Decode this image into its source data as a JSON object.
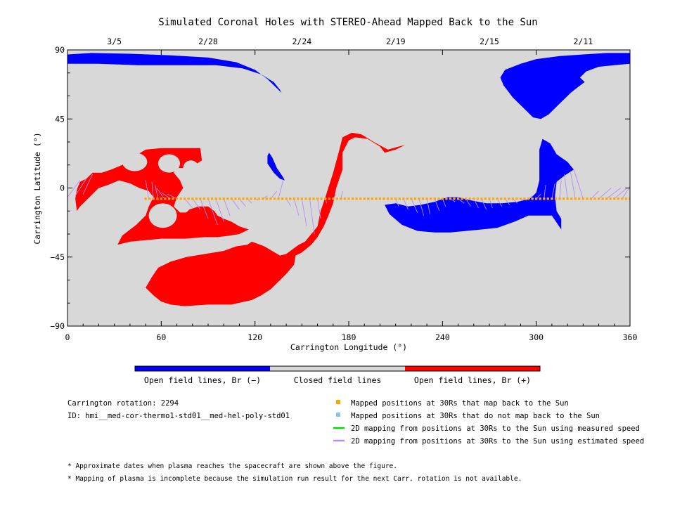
{
  "chart_data": {
    "type": "scatter",
    "title": "Simulated Coronal Holes with STEREO-Ahead Mapped Back to the Sun",
    "xlabel": "Carrington Longitude (°)",
    "ylabel": "Carrington Latitude (°)",
    "xlim": [
      0,
      360
    ],
    "ylim": [
      -90,
      90
    ],
    "x_ticks": [
      "0",
      "60",
      "120",
      "180",
      "240",
      "300",
      "360"
    ],
    "y_ticks": [
      "90",
      "45",
      "0",
      "−45",
      "−90"
    ],
    "x_tick_values": [
      0,
      60,
      120,
      180,
      240,
      300,
      360
    ],
    "y_tick_values": [
      90,
      45,
      0,
      -45,
      -90
    ],
    "top_axis": {
      "labels": [
        "3/5",
        "2/28",
        "2/24",
        "2/19",
        "2/15",
        "2/11"
      ],
      "longitudes": [
        30,
        90,
        150,
        210,
        270,
        330
      ]
    },
    "background_color": "#d8d8d8",
    "colors": {
      "negative": "#0000ff",
      "positive": "#ff0000",
      "mapped": "#ffa500",
      "estimated": "#b68cf5",
      "measured": "#00dd00",
      "unmapped": "#87c3f0"
    },
    "colorbar": {
      "segments": [
        {
          "label": "Open field lines, Br (−)",
          "color": "#0000ff"
        },
        {
          "label": "Closed field lines",
          "color": "#d8d8d8"
        },
        {
          "label": "Open field lines, Br (+)",
          "color": "#ff0000"
        }
      ]
    },
    "mapped_points": {
      "lon_start": 50,
      "lon_end": 360,
      "lon_step": 2.5,
      "lat": -7
    },
    "coronal_holes": [
      {
        "polarity": "negative",
        "outline": [
          [
            0,
            87
          ],
          [
            15,
            88
          ],
          [
            40,
            87.5
          ],
          [
            65,
            86.5
          ],
          [
            90,
            85
          ],
          [
            108,
            82
          ],
          [
            120,
            77
          ],
          [
            128,
            71
          ],
          [
            134,
            65
          ],
          [
            137,
            62
          ],
          [
            136,
            64
          ],
          [
            132,
            69
          ],
          [
            124,
            74
          ],
          [
            112,
            78
          ],
          [
            95,
            80
          ],
          [
            70,
            80
          ],
          [
            45,
            80
          ],
          [
            20,
            81
          ],
          [
            0,
            81
          ]
        ]
      },
      {
        "polarity": "negative",
        "outline": [
          [
            280,
            77
          ],
          [
            290,
            81
          ],
          [
            300,
            84
          ],
          [
            315,
            86
          ],
          [
            330,
            87
          ],
          [
            345,
            88
          ],
          [
            360,
            88
          ],
          [
            360,
            81
          ],
          [
            350,
            80
          ],
          [
            340,
            79
          ],
          [
            332,
            76
          ],
          [
            328,
            72
          ],
          [
            331,
            69
          ],
          [
            327,
            66
          ],
          [
            322,
            62
          ],
          [
            315,
            55
          ],
          [
            308,
            48
          ],
          [
            303,
            45
          ],
          [
            298,
            46
          ],
          [
            292,
            52
          ],
          [
            285,
            59
          ],
          [
            279,
            67
          ],
          [
            277,
            72
          ]
        ]
      },
      {
        "polarity": "negative",
        "outline": [
          [
            129,
            23
          ],
          [
            131,
            20
          ],
          [
            134,
            13
          ],
          [
            138,
            7
          ],
          [
            139,
            5
          ],
          [
            136,
            6
          ],
          [
            132,
            10
          ],
          [
            128,
            16
          ],
          [
            128,
            21
          ]
        ]
      },
      {
        "polarity": "negative",
        "outline": [
          [
            203,
            -11
          ],
          [
            210,
            -10
          ],
          [
            218,
            -12
          ],
          [
            226,
            -11
          ],
          [
            235,
            -9
          ],
          [
            243,
            -6
          ],
          [
            250,
            -6
          ],
          [
            258,
            -8
          ],
          [
            268,
            -10
          ],
          [
            278,
            -10
          ],
          [
            288,
            -9
          ],
          [
            296,
            -7
          ],
          [
            300,
            -3
          ],
          [
            302,
            5
          ],
          [
            302,
            15
          ],
          [
            302,
            25
          ],
          [
            304,
            32
          ],
          [
            309,
            29
          ],
          [
            313,
            22
          ],
          [
            320,
            17
          ],
          [
            324,
            12
          ],
          [
            318,
            8
          ],
          [
            313,
            4
          ],
          [
            312,
            -5
          ],
          [
            313,
            -15
          ],
          [
            316,
            -20
          ],
          [
            316,
            -27
          ],
          [
            310,
            -18
          ],
          [
            302,
            -18
          ],
          [
            295,
            -18
          ],
          [
            286,
            -22
          ],
          [
            275,
            -26
          ],
          [
            265,
            -27
          ],
          [
            255,
            -28
          ],
          [
            245,
            -29
          ],
          [
            235,
            -29
          ],
          [
            224,
            -28
          ],
          [
            214,
            -24
          ],
          [
            206,
            -17
          ]
        ]
      },
      {
        "polarity": "positive",
        "outline": [
          [
            8,
            4
          ],
          [
            12,
            6
          ],
          [
            16,
            10
          ],
          [
            22,
            10
          ],
          [
            28,
            12
          ],
          [
            35,
            15
          ],
          [
            42,
            20
          ],
          [
            50,
            25
          ],
          [
            60,
            26
          ],
          [
            72,
            26
          ],
          [
            85,
            26
          ],
          [
            86,
            18
          ],
          [
            80,
            14
          ],
          [
            75,
            13
          ],
          [
            70,
            13
          ],
          [
            68,
            10
          ],
          [
            72,
            5
          ],
          [
            74,
            0
          ],
          [
            70,
            -6
          ],
          [
            68,
            -12
          ],
          [
            72,
            -16
          ],
          [
            76,
            -16
          ],
          [
            78,
            -14
          ],
          [
            84,
            -12
          ],
          [
            90,
            -12
          ],
          [
            94,
            -15
          ],
          [
            96,
            -18
          ],
          [
            100,
            -20
          ],
          [
            105,
            -22
          ],
          [
            110,
            -25
          ],
          [
            116,
            -27
          ],
          [
            110,
            -30
          ],
          [
            104,
            -31
          ],
          [
            96,
            -32
          ],
          [
            88,
            -32
          ],
          [
            75,
            -33
          ],
          [
            60,
            -33
          ],
          [
            50,
            -34
          ],
          [
            40,
            -35
          ],
          [
            32,
            -37
          ],
          [
            35,
            -31
          ],
          [
            44,
            -24
          ],
          [
            50,
            -18
          ],
          [
            52,
            -12
          ],
          [
            55,
            -6
          ],
          [
            52,
            -2
          ],
          [
            46,
            0
          ],
          [
            40,
            3
          ],
          [
            33,
            5
          ],
          [
            26,
            2
          ],
          [
            20,
            0
          ],
          [
            16,
            -4
          ],
          [
            12,
            -8
          ],
          [
            8,
            -12
          ],
          [
            6,
            -15
          ],
          [
            5,
            -7
          ],
          [
            6,
            -1
          ]
        ]
      },
      {
        "polarity": "positive",
        "outline": [
          [
            54,
            -58
          ],
          [
            58,
            -52
          ],
          [
            66,
            -48
          ],
          [
            76,
            -45
          ],
          [
            88,
            -43
          ],
          [
            100,
            -41
          ],
          [
            108,
            -38
          ],
          [
            115,
            -37
          ],
          [
            118,
            -35
          ],
          [
            126,
            -38
          ],
          [
            136,
            -44
          ],
          [
            140,
            -43
          ],
          [
            144,
            -40
          ],
          [
            148,
            -37
          ],
          [
            152,
            -35
          ],
          [
            156,
            -30
          ],
          [
            160,
            -25
          ],
          [
            162,
            -15
          ],
          [
            165,
            -6
          ],
          [
            170,
            10
          ],
          [
            174,
            25
          ],
          [
            176,
            33
          ],
          [
            182,
            36
          ],
          [
            188,
            35
          ],
          [
            196,
            30
          ],
          [
            205,
            25
          ],
          [
            212,
            27
          ],
          [
            216,
            28
          ],
          [
            210,
            25
          ],
          [
            203,
            23
          ],
          [
            200,
            27
          ],
          [
            192,
            32
          ],
          [
            184,
            33
          ],
          [
            180,
            31
          ],
          [
            176,
            23
          ],
          [
            176,
            12
          ],
          [
            172,
            0
          ],
          [
            170,
            -10
          ],
          [
            167,
            -18
          ],
          [
            164,
            -25
          ],
          [
            160,
            -32
          ],
          [
            156,
            -37
          ],
          [
            150,
            -42
          ],
          [
            146,
            -44
          ],
          [
            145,
            -50
          ],
          [
            140,
            -56
          ],
          [
            135,
            -61
          ],
          [
            130,
            -66
          ],
          [
            124,
            -70
          ],
          [
            118,
            -73
          ],
          [
            105,
            -76
          ],
          [
            90,
            -76
          ],
          [
            75,
            -77
          ],
          [
            66,
            -76
          ],
          [
            60,
            -74
          ],
          [
            55,
            -70
          ],
          [
            50,
            -65
          ]
        ]
      }
    ],
    "positive_holes_cutouts": [
      {
        "cx": 43,
        "cy": 17,
        "rx": 8,
        "ry": 6
      },
      {
        "cx": 65,
        "cy": 16,
        "rx": 7,
        "ry": 6
      },
      {
        "cx": 79,
        "cy": 13,
        "rx": 5,
        "ry": 5
      },
      {
        "cx": 61,
        "cy": -18,
        "rx": 9,
        "ry": 8
      }
    ],
    "estimated_mapping_lines": [
      [
        0,
        -6,
        8,
        5
      ],
      [
        5,
        -5,
        12,
        6
      ],
      [
        10,
        -4,
        16,
        9
      ],
      [
        52,
        -7,
        50,
        5
      ],
      [
        55,
        -7,
        54,
        4
      ],
      [
        58,
        -7,
        56,
        2
      ],
      [
        62,
        -7,
        57,
        0
      ],
      [
        66,
        -7,
        60,
        -3
      ],
      [
        70,
        -7,
        64,
        -4
      ],
      [
        75,
        -7,
        80,
        -13
      ],
      [
        80,
        -7,
        85,
        -14
      ],
      [
        85,
        -7,
        90,
        -20
      ],
      [
        90,
        -7,
        96,
        -24
      ],
      [
        95,
        -7,
        100,
        -22
      ],
      [
        100,
        -7,
        104,
        -18
      ],
      [
        105,
        -7,
        110,
        -14
      ],
      [
        110,
        -7,
        114,
        -12
      ],
      [
        115,
        -7,
        118,
        -10
      ],
      [
        120,
        -7,
        122,
        -8
      ],
      [
        125,
        -7,
        128,
        -5
      ],
      [
        130,
        -7,
        134,
        -2
      ],
      [
        135,
        -7,
        138,
        5
      ],
      [
        140,
        -7,
        143,
        -12
      ],
      [
        145,
        -7,
        148,
        -18
      ],
      [
        150,
        -7,
        153,
        -25
      ],
      [
        155,
        -7,
        158,
        -30
      ],
      [
        160,
        -7,
        162,
        -20
      ],
      [
        165,
        -7,
        166,
        -10
      ],
      [
        170,
        -7,
        172,
        -4
      ],
      [
        175,
        -7,
        176,
        -2
      ],
      [
        210,
        -7,
        212,
        -12
      ],
      [
        215,
        -7,
        218,
        -14
      ],
      [
        220,
        -7,
        224,
        -16
      ],
      [
        225,
        -7,
        228,
        -18
      ],
      [
        230,
        -7,
        232,
        -17
      ],
      [
        235,
        -7,
        238,
        -15
      ],
      [
        240,
        -7,
        242,
        -12
      ],
      [
        245,
        -7,
        248,
        -9
      ],
      [
        250,
        -7,
        254,
        -10
      ],
      [
        255,
        -7,
        258,
        -12
      ],
      [
        260,
        -7,
        263,
        -13
      ],
      [
        265,
        -7,
        268,
        -14
      ],
      [
        270,
        -7,
        272,
        -13
      ],
      [
        275,
        -7,
        278,
        -12
      ],
      [
        280,
        -7,
        283,
        -11
      ],
      [
        285,
        -7,
        288,
        -10
      ],
      [
        290,
        -7,
        294,
        -8
      ],
      [
        295,
        -7,
        298,
        -5
      ],
      [
        300,
        -7,
        303,
        -4
      ],
      [
        305,
        -7,
        306,
        2
      ],
      [
        310,
        -7,
        312,
        3
      ],
      [
        315,
        -7,
        316,
        5
      ],
      [
        320,
        -7,
        318,
        9
      ],
      [
        325,
        -7,
        322,
        10
      ],
      [
        330,
        -7,
        324,
        12
      ],
      [
        335,
        -7,
        340,
        -2
      ],
      [
        340,
        -7,
        348,
        0
      ],
      [
        345,
        -7,
        354,
        0
      ],
      [
        350,
        -7,
        358,
        0
      ],
      [
        355,
        -7,
        360,
        1
      ]
    ]
  },
  "legend": {
    "items": [
      {
        "label": "Mapped positions at 30Rs that map back to the Sun",
        "color": "#ffa500",
        "kind": "square"
      },
      {
        "label": "Mapped positions at 30Rs that do not map back to the Sun",
        "color": "#87c3f0",
        "kind": "square"
      },
      {
        "label": "2D mapping from positions at 30Rs to the Sun using measured speed",
        "color": "#00dd00",
        "kind": "line"
      },
      {
        "label": "2D mapping from positions at 30Rs to the Sun using estimated speed",
        "color": "#b68cf5",
        "kind": "line"
      }
    ]
  },
  "info": {
    "rotation": "Carrington rotation: 2294",
    "id": "ID: hmi__med-cor-thermo1-std01__med-hel-poly-std01"
  },
  "notes": [
    "* Approximate dates when plasma reaches the spacecraft are shown above the figure.",
    "* Mapping of plasma is incomplete because the simulation run result for the next Carr. rotation is not available."
  ]
}
